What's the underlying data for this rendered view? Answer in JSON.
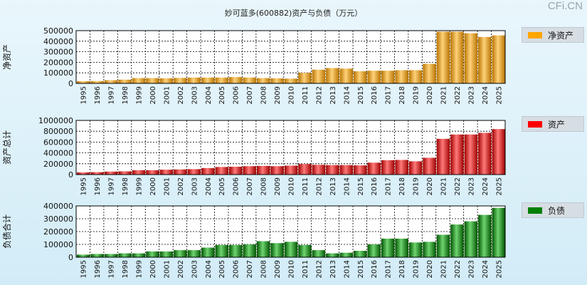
{
  "title": "妙可蓝多(600882)资产与负债（万元）",
  "watermark": "CFi.CN",
  "chart_data": [
    {
      "type": "bar",
      "ylabel": "净资产",
      "legend": "净资产",
      "color": "#ffa500",
      "ylim": [
        0,
        500000
      ],
      "yticks": [
        "500000",
        "400000",
        "300000",
        "200000",
        "100000",
        "0"
      ],
      "categories": [
        "1995",
        "1996",
        "1997",
        "1998",
        "1999",
        "2000",
        "2001",
        "2002",
        "2003",
        "2004",
        "2005",
        "2006",
        "2007",
        "2008",
        "2009",
        "2010",
        "2011",
        "2012",
        "2013",
        "2014",
        "2015",
        "2016",
        "2017",
        "2018",
        "2019",
        "2020",
        "2021",
        "2022",
        "2023",
        "2024",
        "2025"
      ],
      "values": [
        20000,
        22000,
        30000,
        35000,
        50000,
        50000,
        48000,
        52000,
        55000,
        55000,
        55000,
        60000,
        55000,
        50000,
        48000,
        45000,
        100000,
        130000,
        145000,
        140000,
        115000,
        120000,
        120000,
        125000,
        125000,
        185000,
        490000,
        490000,
        475000,
        440000,
        455000
      ]
    },
    {
      "type": "bar",
      "ylabel": "资产总计",
      "legend": "资产",
      "color": "#ff0000",
      "ylim": [
        0,
        1000000
      ],
      "yticks": [
        "1000000",
        "800000",
        "600000",
        "400000",
        "200000",
        "0"
      ],
      "categories": [
        "1995",
        "1996",
        "1997",
        "1998",
        "1999",
        "2000",
        "2001",
        "2002",
        "2003",
        "2004",
        "2005",
        "2006",
        "2007",
        "2008",
        "2009",
        "2010",
        "2011",
        "2012",
        "2013",
        "2014",
        "2015",
        "2016",
        "2017",
        "2018",
        "2019",
        "2020",
        "2021",
        "2022",
        "2023",
        "2024",
        "2025"
      ],
      "values": [
        40000,
        45000,
        55000,
        60000,
        80000,
        80000,
        90000,
        95000,
        100000,
        120000,
        140000,
        145000,
        155000,
        160000,
        155000,
        165000,
        195000,
        180000,
        175000,
        175000,
        170000,
        220000,
        265000,
        270000,
        245000,
        310000,
        660000,
        740000,
        740000,
        770000,
        840000
      ]
    },
    {
      "type": "bar",
      "ylabel": "负债合计",
      "legend": "负债",
      "color": "#008000",
      "ylim": [
        0,
        400000
      ],
      "yticks": [
        "400000",
        "300000",
        "200000",
        "100000",
        "0"
      ],
      "categories": [
        "1995",
        "1996",
        "1997",
        "1998",
        "1999",
        "2000",
        "2001",
        "2002",
        "2003",
        "2004",
        "2005",
        "2006",
        "2007",
        "2008",
        "2009",
        "2010",
        "2011",
        "2012",
        "2013",
        "2014",
        "2015",
        "2016",
        "2017",
        "2018",
        "2019",
        "2020",
        "2021",
        "2022",
        "2023",
        "2024",
        "2025"
      ],
      "values": [
        20000,
        25000,
        25000,
        30000,
        30000,
        45000,
        45000,
        55000,
        55000,
        75000,
        95000,
        95000,
        100000,
        125000,
        110000,
        120000,
        95000,
        55000,
        30000,
        35000,
        50000,
        100000,
        145000,
        145000,
        115000,
        120000,
        175000,
        255000,
        280000,
        330000,
        385000
      ]
    }
  ]
}
